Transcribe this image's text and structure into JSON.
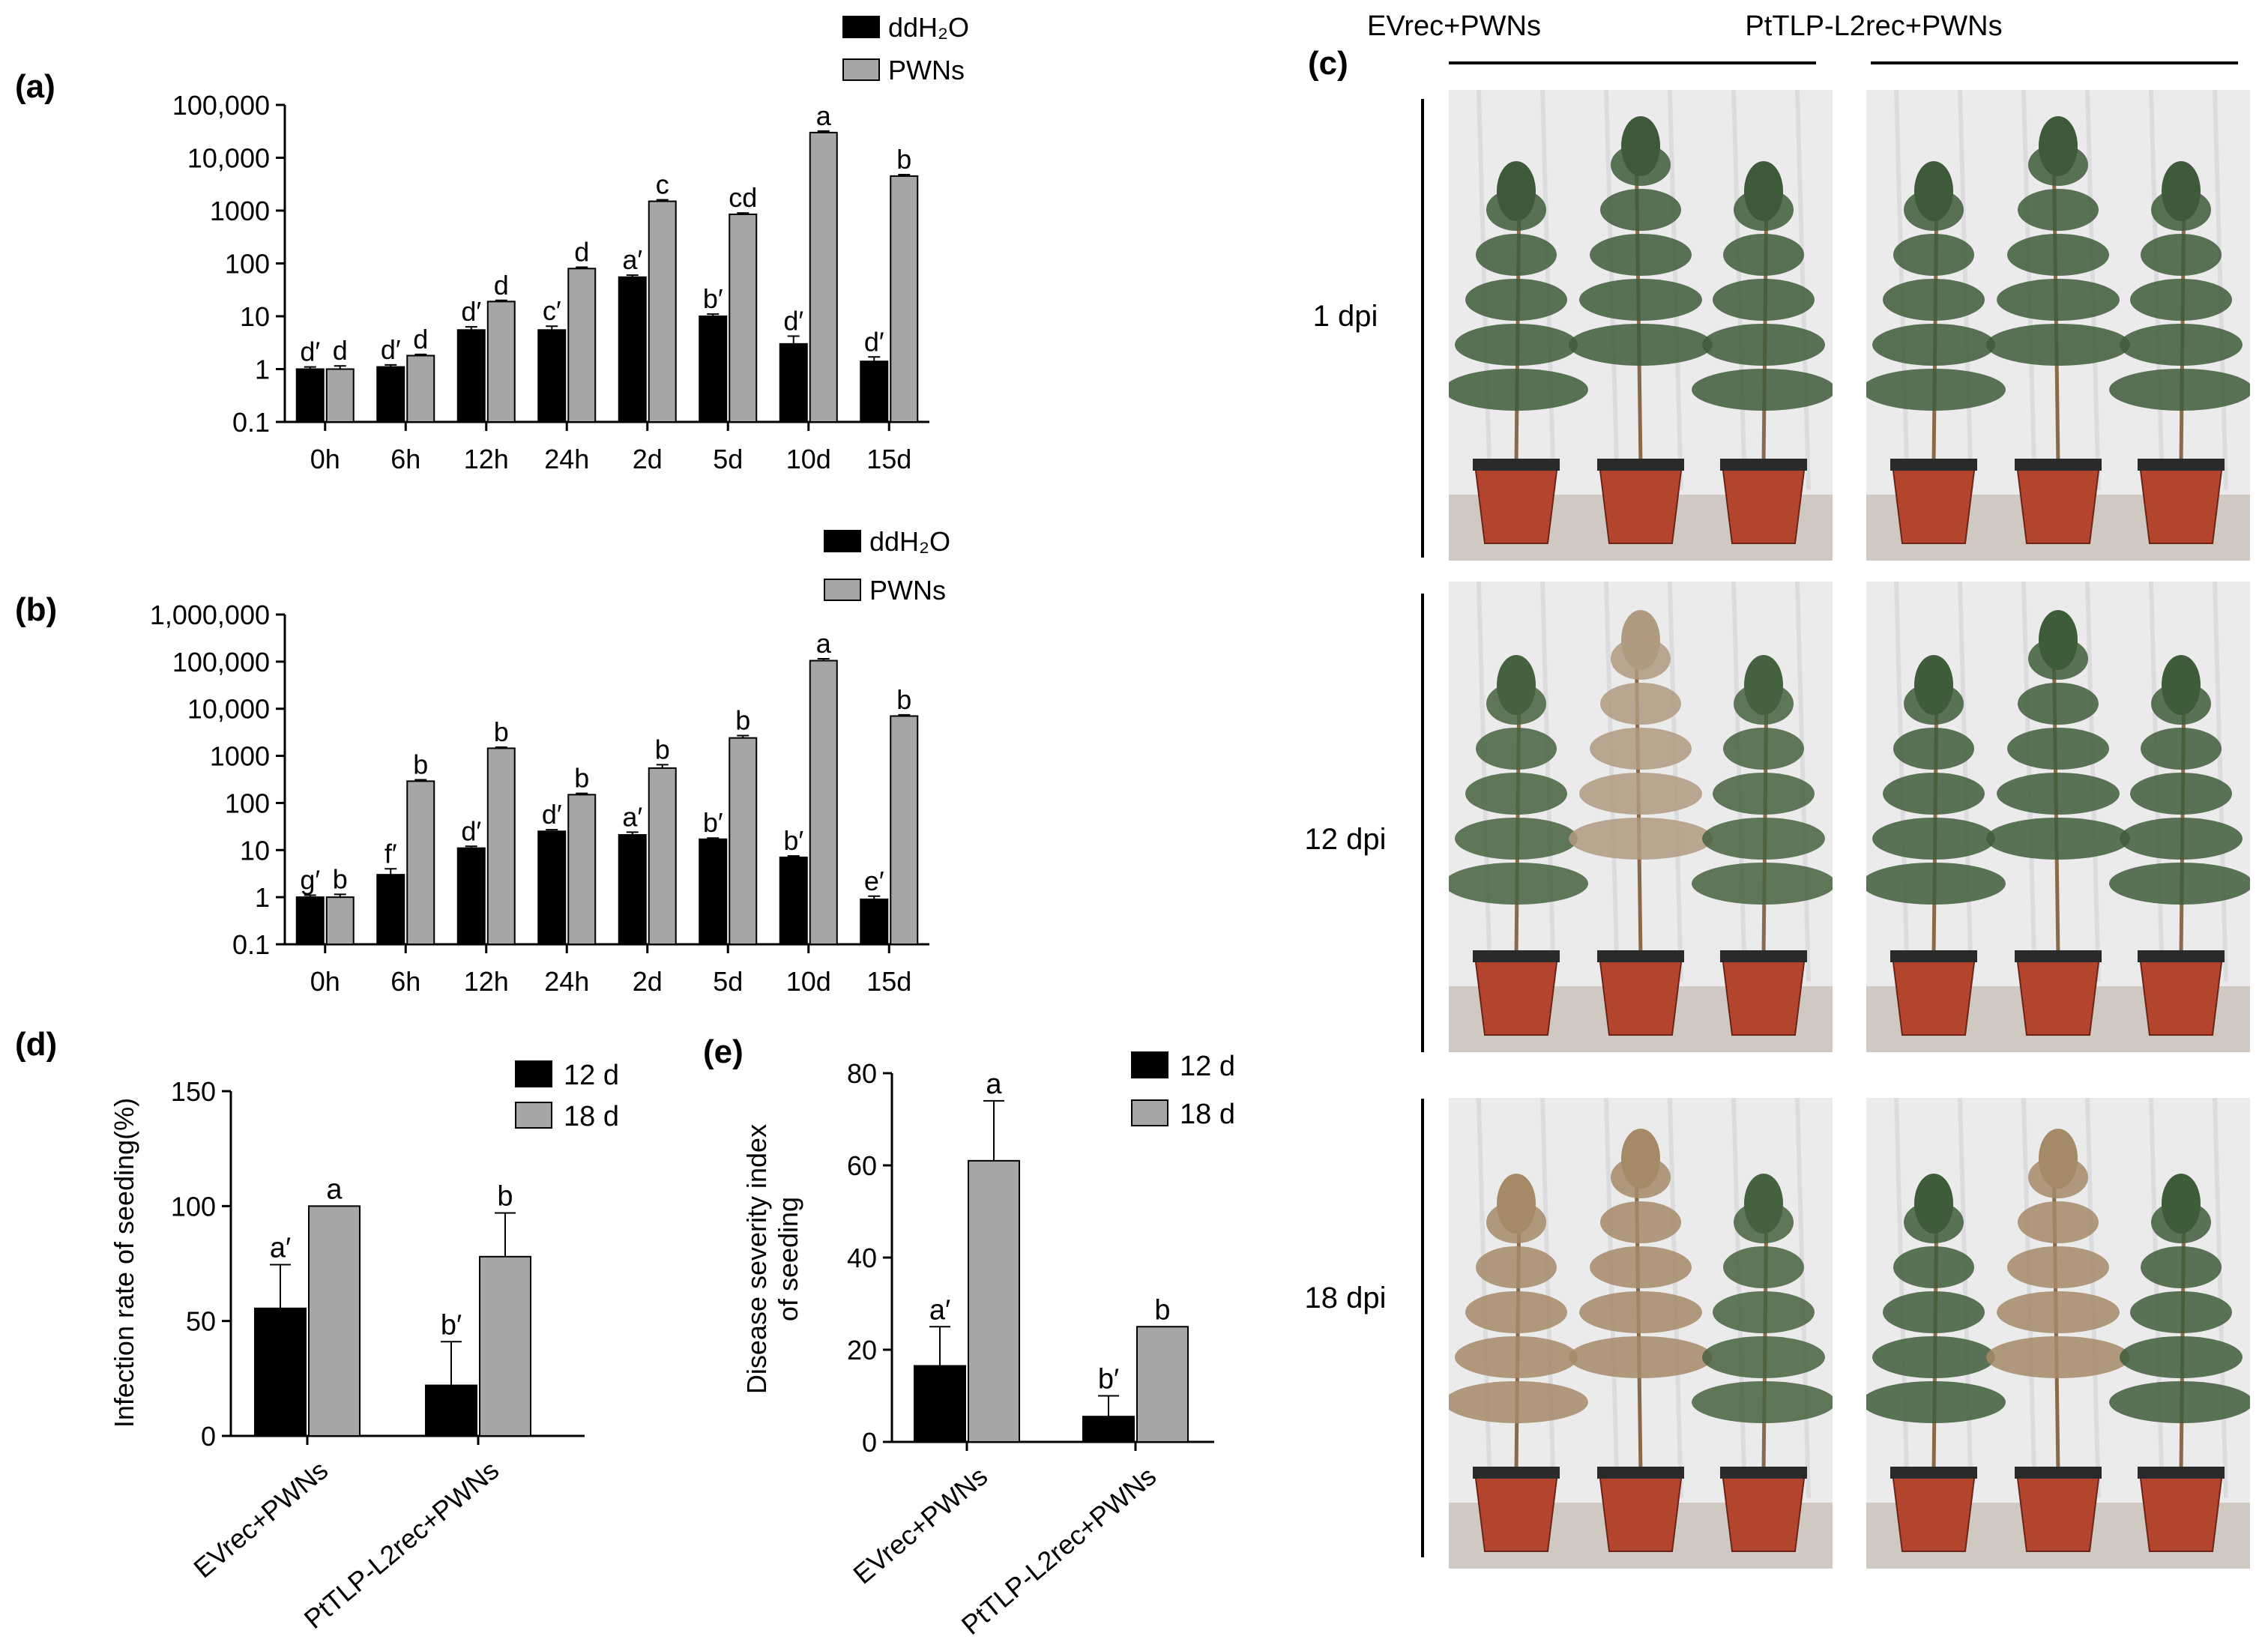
{
  "colors": {
    "ddH2O": "#000000",
    "PWNs": "#a6a6a6",
    "bar_edge": "#000000"
  },
  "chart_data": [
    {
      "panel": "(a)",
      "type": "bar",
      "yscale": "log",
      "ylim": [
        0.1,
        100000
      ],
      "y_ticks": [
        "0.1",
        "1",
        "10",
        "100",
        "1000",
        "10,000",
        "100,000"
      ],
      "categories": [
        "0h",
        "6h",
        "12h",
        "24h",
        "2d",
        "5d",
        "10d",
        "15d"
      ],
      "legend": [
        "ddH₂O",
        "PWNs"
      ],
      "series": [
        {
          "name": "ddH₂O",
          "values": [
            1,
            1.1,
            5.5,
            5.5,
            55,
            10,
            3,
            1.4
          ],
          "errors": [
            0.1,
            0.1,
            0.8,
            1,
            5,
            1,
            1.2,
            0.3
          ],
          "labels": [
            "d′",
            "d′",
            "d′",
            "c′",
            "a′",
            "b′",
            "d′",
            "d′"
          ]
        },
        {
          "name": "PWNs",
          "values": [
            1,
            1.8,
            19,
            80,
            1500,
            850,
            30000,
            4500
          ],
          "errors": [
            0.15,
            0.1,
            1,
            5,
            100,
            50,
            2000,
            300
          ],
          "labels": [
            "d",
            "d",
            "d",
            "d",
            "c",
            "cd",
            "a",
            "b"
          ]
        }
      ]
    },
    {
      "panel": "(b)",
      "type": "bar",
      "yscale": "log",
      "ylim": [
        0.1,
        1000000
      ],
      "y_ticks": [
        "0.1",
        "1",
        "10",
        "100",
        "1000",
        "10,000",
        "100,000",
        "1,000,000"
      ],
      "categories": [
        "0h",
        "6h",
        "12h",
        "24h",
        "2d",
        "5d",
        "10d",
        "15d"
      ],
      "legend": [
        "ddH₂O",
        "PWNs"
      ],
      "series": [
        {
          "name": "ddH₂O",
          "values": [
            1,
            3,
            11,
            25,
            21,
            17,
            7,
            0.9
          ],
          "errors": [
            0.1,
            1,
            1,
            2,
            3,
            1,
            0.5,
            0.15
          ],
          "labels": [
            "g′",
            "f′",
            "d′",
            "d′",
            "a′",
            "b′",
            "b′",
            "e′"
          ]
        },
        {
          "name": "PWNs",
          "values": [
            1,
            290,
            1450,
            150,
            550,
            2400,
            105000,
            7000
          ],
          "errors": [
            0.15,
            20,
            80,
            10,
            100,
            300,
            10000,
            400
          ],
          "labels": [
            "b",
            "b",
            "b",
            "b",
            "b",
            "b",
            "a",
            "b"
          ]
        }
      ]
    },
    {
      "panel": "(d)",
      "type": "bar",
      "yscale": "linear",
      "ylim": [
        0,
        150
      ],
      "y_ticks": [
        "0",
        "50",
        "100",
        "150"
      ],
      "ylabel": "Infection rate of seeding(%)",
      "categories": [
        "EVrec+PWNs",
        "PtTLP-L2rec+PWNs"
      ],
      "legend": [
        "12 d",
        "18 d"
      ],
      "series": [
        {
          "name": "12 d",
          "values": [
            55.5,
            22
          ],
          "errors": [
            19,
            19
          ],
          "labels": [
            "a′",
            "b′"
          ]
        },
        {
          "name": "18 d",
          "values": [
            100,
            78
          ],
          "errors": [
            0,
            19
          ],
          "labels": [
            "a",
            "b"
          ]
        }
      ]
    },
    {
      "panel": "(e)",
      "type": "bar",
      "yscale": "linear",
      "ylim": [
        0,
        80
      ],
      "y_ticks": [
        "0",
        "20",
        "40",
        "60",
        "80"
      ],
      "ylabel": [
        "Disease severity index",
        "of seeding"
      ],
      "categories": [
        "EVrec+PWNs",
        "PtTLP-L2rec+PWNs"
      ],
      "legend": [
        "12 d",
        "18 d"
      ],
      "series": [
        {
          "name": "12 d",
          "values": [
            16.5,
            5.5
          ],
          "errors": [
            8.5,
            4.5
          ],
          "labels": [
            "a′",
            "b′"
          ]
        },
        {
          "name": "18 d",
          "values": [
            61,
            25
          ],
          "errors": [
            13,
            0
          ],
          "labels": [
            "a",
            "b"
          ]
        }
      ]
    }
  ],
  "panel_c": {
    "label": "(c)",
    "columns": [
      "EVrec+PWNs",
      "PtTLP-L2rec+PWNs"
    ],
    "rows": [
      "1 dpi",
      "12 dpi",
      "18 dpi"
    ]
  }
}
